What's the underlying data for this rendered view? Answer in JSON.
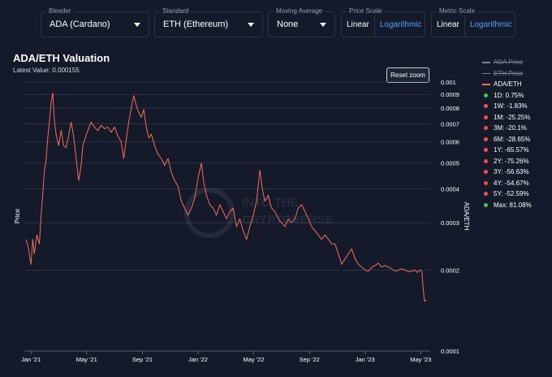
{
  "controls": {
    "bleeder": {
      "label": "Bleeder",
      "value": "ADA (Cardano)"
    },
    "standard": {
      "label": "Standard",
      "value": "ETH (Ethereum)"
    },
    "moving_average": {
      "label": "Moving Average",
      "value": "None"
    },
    "price_scale": {
      "label": "Price Scale",
      "options": [
        "Linear",
        "Logarithmic"
      ],
      "selected": "Linear"
    },
    "metric_scale": {
      "label": "Metric Scale",
      "options": [
        "Linear",
        "Logarithmic"
      ],
      "selected": "Linear"
    }
  },
  "colors": {
    "series": "#f26d5b",
    "background": "#141a2a",
    "grid": "#3a4256",
    "link": "#4da3ff",
    "green": "#39d353",
    "red": "#f0504a"
  },
  "reset_label": "Reset zoom",
  "legend": {
    "items": [
      {
        "label": "ADA Price",
        "visible": false
      },
      {
        "label": "ETH Price",
        "visible": false
      },
      {
        "label": "ADA/ETH",
        "visible": true
      }
    ],
    "stats": [
      {
        "text": "1D: 0.75%",
        "status": "green"
      },
      {
        "text": "1W: -1.83%",
        "status": "red"
      },
      {
        "text": "1M: -25.25%",
        "status": "red"
      },
      {
        "text": "3M: -20.1%",
        "status": "red"
      },
      {
        "text": "6M: -28.65%",
        "status": "red"
      },
      {
        "text": "1Y: -65.57%",
        "status": "red"
      },
      {
        "text": "2Y: -75.26%",
        "status": "red"
      },
      {
        "text": "3Y: -56.63%",
        "status": "red"
      },
      {
        "text": "4Y: -54.67%",
        "status": "red"
      },
      {
        "text": "5Y: -52.59%",
        "status": "red"
      },
      {
        "text": "Max: 81.08%",
        "status": "green"
      }
    ]
  },
  "watermark": [
    "INTO THE",
    "CRYPTOVERSE"
  ],
  "chart_data": {
    "type": "line",
    "title": "ADA/ETH Valuation",
    "subtitle": "Latest Value: 0.000155",
    "xlabel": "",
    "ylabel_left": "Price",
    "ylabel_right": "ADA/ETH",
    "y_scale": "log",
    "ylim": [
      0.0001,
      0.001
    ],
    "xlim": [
      2020.96,
      2023.39
    ],
    "grid": true,
    "x_ticks": [
      {
        "label": "Jan '21",
        "t": 2021.0
      },
      {
        "label": "May '21",
        "t": 2021.333
      },
      {
        "label": "Sep '21",
        "t": 2021.667
      },
      {
        "label": "Jan '22",
        "t": 2022.0
      },
      {
        "label": "May '22",
        "t": 2022.333
      },
      {
        "label": "Sep '22",
        "t": 2022.667
      },
      {
        "label": "Jan '23",
        "t": 2023.0
      },
      {
        "label": "May '23",
        "t": 2023.333
      }
    ],
    "y_ticks": [
      {
        "label": "0.001",
        "v": 0.001
      },
      {
        "label": "0.0009",
        "v": 0.0009
      },
      {
        "label": "0.0008",
        "v": 0.0008
      },
      {
        "label": "0.0007",
        "v": 0.0007
      },
      {
        "label": "0.0006",
        "v": 0.0006
      },
      {
        "label": "0.0005",
        "v": 0.0005
      },
      {
        "label": "0.0004",
        "v": 0.0004
      },
      {
        "label": "0.0003",
        "v": 0.0003
      },
      {
        "label": "0.0002",
        "v": 0.0002
      },
      {
        "label": "0.0001",
        "v": 0.0001
      }
    ],
    "series": [
      {
        "name": "ADA/ETH",
        "points": [
          [
            2020.97,
            0.00026
          ],
          [
            2020.985,
            0.00024
          ],
          [
            2021.0,
            0.00021
          ],
          [
            2021.01,
            0.00026
          ],
          [
            2021.02,
            0.00023
          ],
          [
            2021.035,
            0.00027
          ],
          [
            2021.05,
            0.00025
          ],
          [
            2021.06,
            0.00032
          ],
          [
            2021.07,
            0.00038
          ],
          [
            2021.08,
            0.00047
          ],
          [
            2021.09,
            0.00051
          ],
          [
            2021.1,
            0.00062
          ],
          [
            2021.11,
            0.00071
          ],
          [
            2021.12,
            0.00084
          ],
          [
            2021.13,
            0.00091
          ],
          [
            2021.14,
            0.00072
          ],
          [
            2021.15,
            0.00064
          ],
          [
            2021.165,
            0.00058
          ],
          [
            2021.18,
            0.00066
          ],
          [
            2021.195,
            0.00058
          ],
          [
            2021.21,
            0.00057
          ],
          [
            2021.225,
            0.00063
          ],
          [
            2021.24,
            0.00071
          ],
          [
            2021.255,
            0.00063
          ],
          [
            2021.27,
            0.00052
          ],
          [
            2021.285,
            0.00043
          ],
          [
            2021.3,
            0.00049
          ],
          [
            2021.31,
            0.00058
          ],
          [
            2021.325,
            0.00062
          ],
          [
            2021.34,
            0.00066
          ],
          [
            2021.36,
            0.00071
          ],
          [
            2021.38,
            0.00068
          ],
          [
            2021.4,
            0.00066
          ],
          [
            2021.42,
            0.00069
          ],
          [
            2021.44,
            0.00067
          ],
          [
            2021.46,
            0.00068
          ],
          [
            2021.48,
            0.00065
          ],
          [
            2021.5,
            0.00068
          ],
          [
            2021.52,
            0.00063
          ],
          [
            2021.54,
            0.0006
          ],
          [
            2021.555,
            0.00052
          ],
          [
            2021.57,
            0.00061
          ],
          [
            2021.585,
            0.00071
          ],
          [
            2021.6,
            0.0008
          ],
          [
            2021.615,
            0.00089
          ],
          [
            2021.63,
            0.00082
          ],
          [
            2021.645,
            0.00077
          ],
          [
            2021.66,
            0.00074
          ],
          [
            2021.675,
            0.00079
          ],
          [
            2021.69,
            0.00068
          ],
          [
            2021.705,
            0.00062
          ],
          [
            2021.72,
            0.00064
          ],
          [
            2021.74,
            0.00058
          ],
          [
            2021.76,
            0.00054
          ],
          [
            2021.78,
            0.00052
          ],
          [
            2021.8,
            0.00049
          ],
          [
            2021.82,
            0.00052
          ],
          [
            2021.84,
            0.00046
          ],
          [
            2021.86,
            0.00043
          ],
          [
            2021.88,
            0.00041
          ],
          [
            2021.9,
            0.00036
          ],
          [
            2021.92,
            0.00034
          ],
          [
            2021.94,
            0.00032
          ],
          [
            2021.96,
            0.00034
          ],
          [
            2021.98,
            0.00037
          ],
          [
            2022.0,
            0.00044
          ],
          [
            2022.02,
            0.0005
          ],
          [
            2022.035,
            0.00042
          ],
          [
            2022.05,
            0.00038
          ],
          [
            2022.07,
            0.00035
          ],
          [
            2022.09,
            0.00034
          ],
          [
            2022.11,
            0.00032
          ],
          [
            2022.13,
            0.00035
          ],
          [
            2022.15,
            0.00033
          ],
          [
            2022.17,
            0.00031
          ],
          [
            2022.19,
            0.00033
          ],
          [
            2022.21,
            0.00034
          ],
          [
            2022.23,
            0.00029
          ],
          [
            2022.25,
            0.00031
          ],
          [
            2022.27,
            0.00028
          ],
          [
            2022.29,
            0.00026
          ],
          [
            2022.31,
            0.00029
          ],
          [
            2022.33,
            0.00032
          ],
          [
            2022.35,
            0.00036
          ],
          [
            2022.37,
            0.00047
          ],
          [
            2022.385,
            0.0004
          ],
          [
            2022.4,
            0.00036
          ],
          [
            2022.42,
            0.00038
          ],
          [
            2022.44,
            0.00034
          ],
          [
            2022.46,
            0.00033
          ],
          [
            2022.48,
            0.00031
          ],
          [
            2022.5,
            0.0003
          ],
          [
            2022.52,
            0.00029
          ],
          [
            2022.54,
            0.00031
          ],
          [
            2022.56,
            0.0003
          ],
          [
            2022.58,
            0.00031
          ],
          [
            2022.6,
            0.00034
          ],
          [
            2022.62,
            0.00035
          ],
          [
            2022.64,
            0.00033
          ],
          [
            2022.66,
            0.00031
          ],
          [
            2022.68,
            0.00029
          ],
          [
            2022.7,
            0.00028
          ],
          [
            2022.72,
            0.00027
          ],
          [
            2022.74,
            0.00026
          ],
          [
            2022.76,
            0.00027
          ],
          [
            2022.78,
            0.00026
          ],
          [
            2022.8,
            0.00025
          ],
          [
            2022.82,
            0.00025
          ],
          [
            2022.84,
            0.00023
          ],
          [
            2022.86,
            0.00021
          ],
          [
            2022.88,
            0.00022
          ],
          [
            2022.9,
            0.00023
          ],
          [
            2022.92,
            0.00024
          ],
          [
            2022.94,
            0.00022
          ],
          [
            2022.96,
            0.00021
          ],
          [
            2022.98,
            0.000205
          ],
          [
            2023.0,
            0.0002
          ],
          [
            2023.02,
            0.000198
          ],
          [
            2023.04,
            0.000205
          ],
          [
            2023.06,
            0.000208
          ],
          [
            2023.08,
            0.000212
          ],
          [
            2023.1,
            0.000205
          ],
          [
            2023.12,
            0.000208
          ],
          [
            2023.14,
            0.000205
          ],
          [
            2023.16,
            0.000202
          ],
          [
            2023.18,
            0.000198
          ],
          [
            2023.2,
            0.0002
          ],
          [
            2023.22,
            0.000202
          ],
          [
            2023.24,
            0.0002
          ],
          [
            2023.26,
            0.000197
          ],
          [
            2023.28,
            0.000198
          ],
          [
            2023.3,
            0.0002
          ],
          [
            2023.31,
            0.000196
          ],
          [
            2023.32,
            0.000198
          ],
          [
            2023.33,
            0.0002
          ],
          [
            2023.34,
            0.000198
          ],
          [
            2023.345,
            0.00018
          ],
          [
            2023.35,
            0.000165
          ],
          [
            2023.355,
            0.000154
          ],
          [
            2023.36,
            0.000153
          ],
          [
            2023.365,
            0.000155
          ]
        ]
      }
    ]
  }
}
